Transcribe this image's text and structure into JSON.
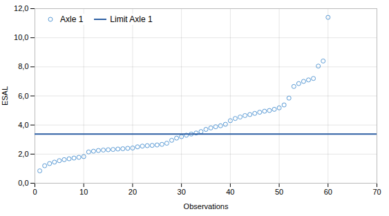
{
  "chart_data": {
    "type": "scatter",
    "xlabel": "Observations",
    "ylabel": "ESAL",
    "x": [
      1,
      2,
      3,
      4,
      5,
      6,
      7,
      8,
      9,
      10,
      11,
      12,
      13,
      14,
      15,
      16,
      17,
      18,
      19,
      20,
      21,
      22,
      23,
      24,
      25,
      26,
      27,
      28,
      29,
      30,
      31,
      32,
      33,
      34,
      35,
      36,
      37,
      38,
      39,
      40,
      41,
      42,
      43,
      44,
      45,
      46,
      47,
      48,
      49,
      50,
      51,
      52,
      53,
      54,
      55,
      56,
      57,
      58,
      59,
      60
    ],
    "series": [
      {
        "name": "Axle 1",
        "type": "scatter",
        "marker": "open_circle",
        "color": "#5b9bd5",
        "values": [
          0.85,
          1.2,
          1.35,
          1.45,
          1.55,
          1.62,
          1.68,
          1.73,
          1.78,
          1.83,
          2.15,
          2.2,
          2.25,
          2.28,
          2.3,
          2.32,
          2.35,
          2.37,
          2.4,
          2.42,
          2.5,
          2.55,
          2.58,
          2.6,
          2.63,
          2.67,
          2.75,
          2.95,
          3.1,
          3.2,
          3.3,
          3.38,
          3.45,
          3.55,
          3.7,
          3.8,
          3.88,
          3.95,
          4.05,
          4.3,
          4.45,
          4.55,
          4.65,
          4.72,
          4.8,
          4.88,
          4.95,
          5.0,
          5.08,
          5.18,
          5.38,
          5.85,
          6.65,
          6.85,
          7.0,
          7.1,
          7.2,
          8.05,
          8.4,
          11.4
        ]
      },
      {
        "name": "Limit Axle 1",
        "type": "hline",
        "line_style": "solid",
        "color": "#2e5fa3",
        "value": 3.38
      }
    ],
    "xlim": [
      0,
      70
    ],
    "ylim": [
      0,
      12
    ],
    "xticks": [
      0,
      10,
      20,
      30,
      40,
      50,
      60,
      70
    ],
    "yticks": [
      {
        "value": 0.0,
        "label": "0,0"
      },
      {
        "value": 2.0,
        "label": "2,0"
      },
      {
        "value": 4.0,
        "label": "4,0"
      },
      {
        "value": 6.0,
        "label": "6,0"
      },
      {
        "value": 8.0,
        "label": "8,0"
      },
      {
        "value": 10.0,
        "label": "10,0"
      },
      {
        "value": 12.0,
        "label": "12,0"
      }
    ],
    "grid": true,
    "legend": "upper left"
  }
}
